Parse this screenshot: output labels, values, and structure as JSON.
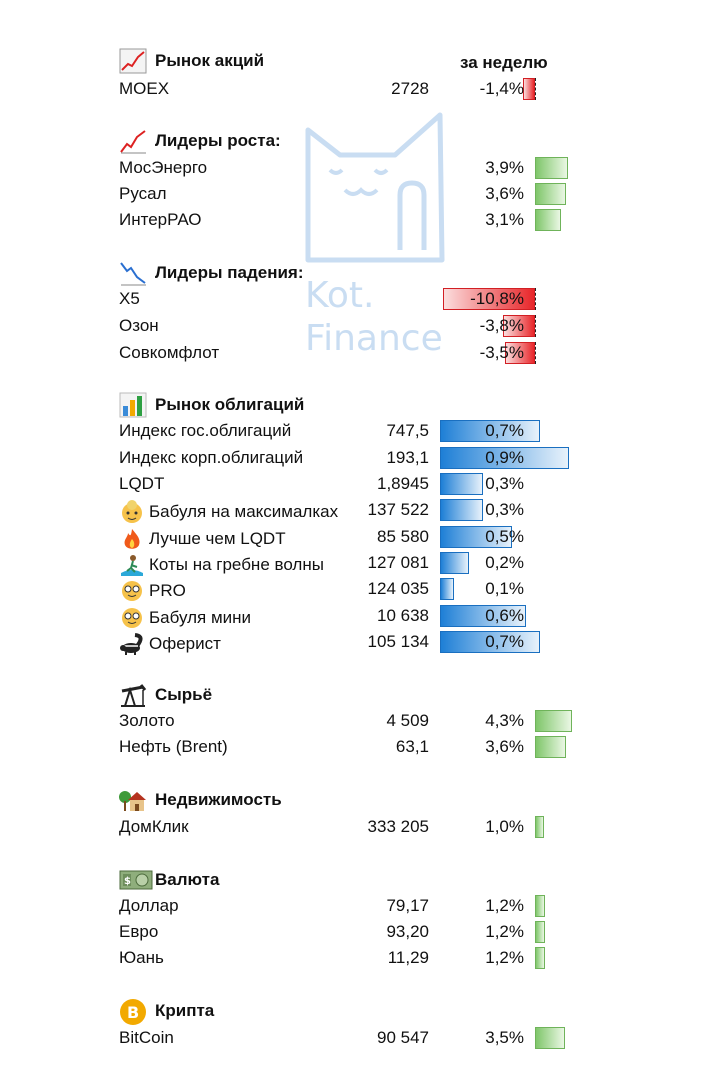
{
  "header": {
    "week_label": "за неделю"
  },
  "sections": {
    "stocks": {
      "title": "Рынок акций",
      "icon": "chart-up-icon"
    },
    "gainers": {
      "title": "Лидеры роста:",
      "icon": "trend-up-icon"
    },
    "losers": {
      "title": "Лидеры падения:",
      "icon": "trend-down-icon"
    },
    "bonds": {
      "title": "Рынок облигаций",
      "icon": "bar-chart-icon"
    },
    "commodities": {
      "title": "Сырьё",
      "icon": "oil-pump-icon"
    },
    "realestate": {
      "title": "Недвижимость",
      "icon": "house-icon"
    },
    "currency": {
      "title": "Валюта",
      "icon": "banknote-icon"
    },
    "crypto": {
      "title": "Крипта",
      "icon": "bitcoin-icon"
    }
  },
  "watermark": {
    "line1": "Kot.",
    "line2": "Finance"
  },
  "rows": {
    "moex": {
      "name": "MOEX",
      "value": "2728",
      "pct": "-1,4%",
      "change": -1.4
    },
    "mosenergo": {
      "name": "МосЭнерго",
      "value": "",
      "pct": "3,9%",
      "change": 3.9
    },
    "rusal": {
      "name": "Русал",
      "value": "",
      "pct": "3,6%",
      "change": 3.6
    },
    "interrao": {
      "name": "ИнтерРАО",
      "value": "",
      "pct": "3,1%",
      "change": 3.1
    },
    "x5": {
      "name": "X5",
      "value": "",
      "pct": "-10,8%",
      "change": -10.8
    },
    "ozon": {
      "name": "Озон",
      "value": "",
      "pct": "-3,8%",
      "change": -3.8
    },
    "sovcomflot": {
      "name": "Совкомфлот",
      "value": "",
      "pct": "-3,5%",
      "change": -3.5
    },
    "gov_bonds": {
      "name": "Индекс гос.облигаций",
      "value": "747,5",
      "pct": "0,7%",
      "change": 0.7
    },
    "corp_bonds": {
      "name": "Индекс корп.облигаций",
      "value": "193,1",
      "pct": "0,9%",
      "change": 0.9
    },
    "lqdt": {
      "name": "LQDT",
      "value": "1,8945",
      "pct": "0,3%",
      "change": 0.3
    },
    "babulya_max": {
      "name": "Бабуля на максималках",
      "value": "137 522",
      "pct": "0,3%",
      "change": 0.3,
      "icon": "grandma-icon"
    },
    "better_lqdt": {
      "name": "Лучше чем LQDT",
      "value": "85 580",
      "pct": "0,5%",
      "change": 0.5,
      "icon": "fire-icon"
    },
    "cats_wave": {
      "name": "Коты на гребне волны",
      "value": "127 081",
      "pct": "0,2%",
      "change": 0.2,
      "icon": "surfer-icon"
    },
    "pro": {
      "name": "PRO",
      "value": "124 035",
      "pct": "0,1%",
      "change": 0.1,
      "icon": "nerd-face-icon"
    },
    "babulya_mini": {
      "name": "Бабуля мини",
      "value": "10 638",
      "pct": "0,6%",
      "change": 0.6,
      "icon": "nerd-face-icon"
    },
    "oferist": {
      "name": "Оферист",
      "value": "105 134",
      "pct": "0,7%",
      "change": 0.7,
      "icon": "skunk-icon"
    },
    "gold": {
      "name": "Золото",
      "value": "4 509",
      "pct": "4,3%",
      "change": 4.3
    },
    "brent": {
      "name": "Нефть (Brent)",
      "value": "63,1",
      "pct": "3,6%",
      "change": 3.6
    },
    "domclick": {
      "name": "ДомКлик",
      "value": "333 205",
      "pct": "1,0%",
      "change": 1.0
    },
    "usd": {
      "name": "Доллар",
      "value": "79,17",
      "pct": "1,2%",
      "change": 1.2
    },
    "eur": {
      "name": "Евро",
      "value": "93,20",
      "pct": "1,2%",
      "change": 1.2
    },
    "cny": {
      "name": "Юань",
      "value": "11,29",
      "pct": "1,2%",
      "change": 1.2
    },
    "bitcoin": {
      "name": "BitCoin",
      "value": "90 547",
      "pct": "3,5%",
      "change": 3.5
    }
  },
  "colors": {
    "green": "#7fc66a",
    "red": "#e8262a",
    "blue": "#1e7fd6"
  }
}
